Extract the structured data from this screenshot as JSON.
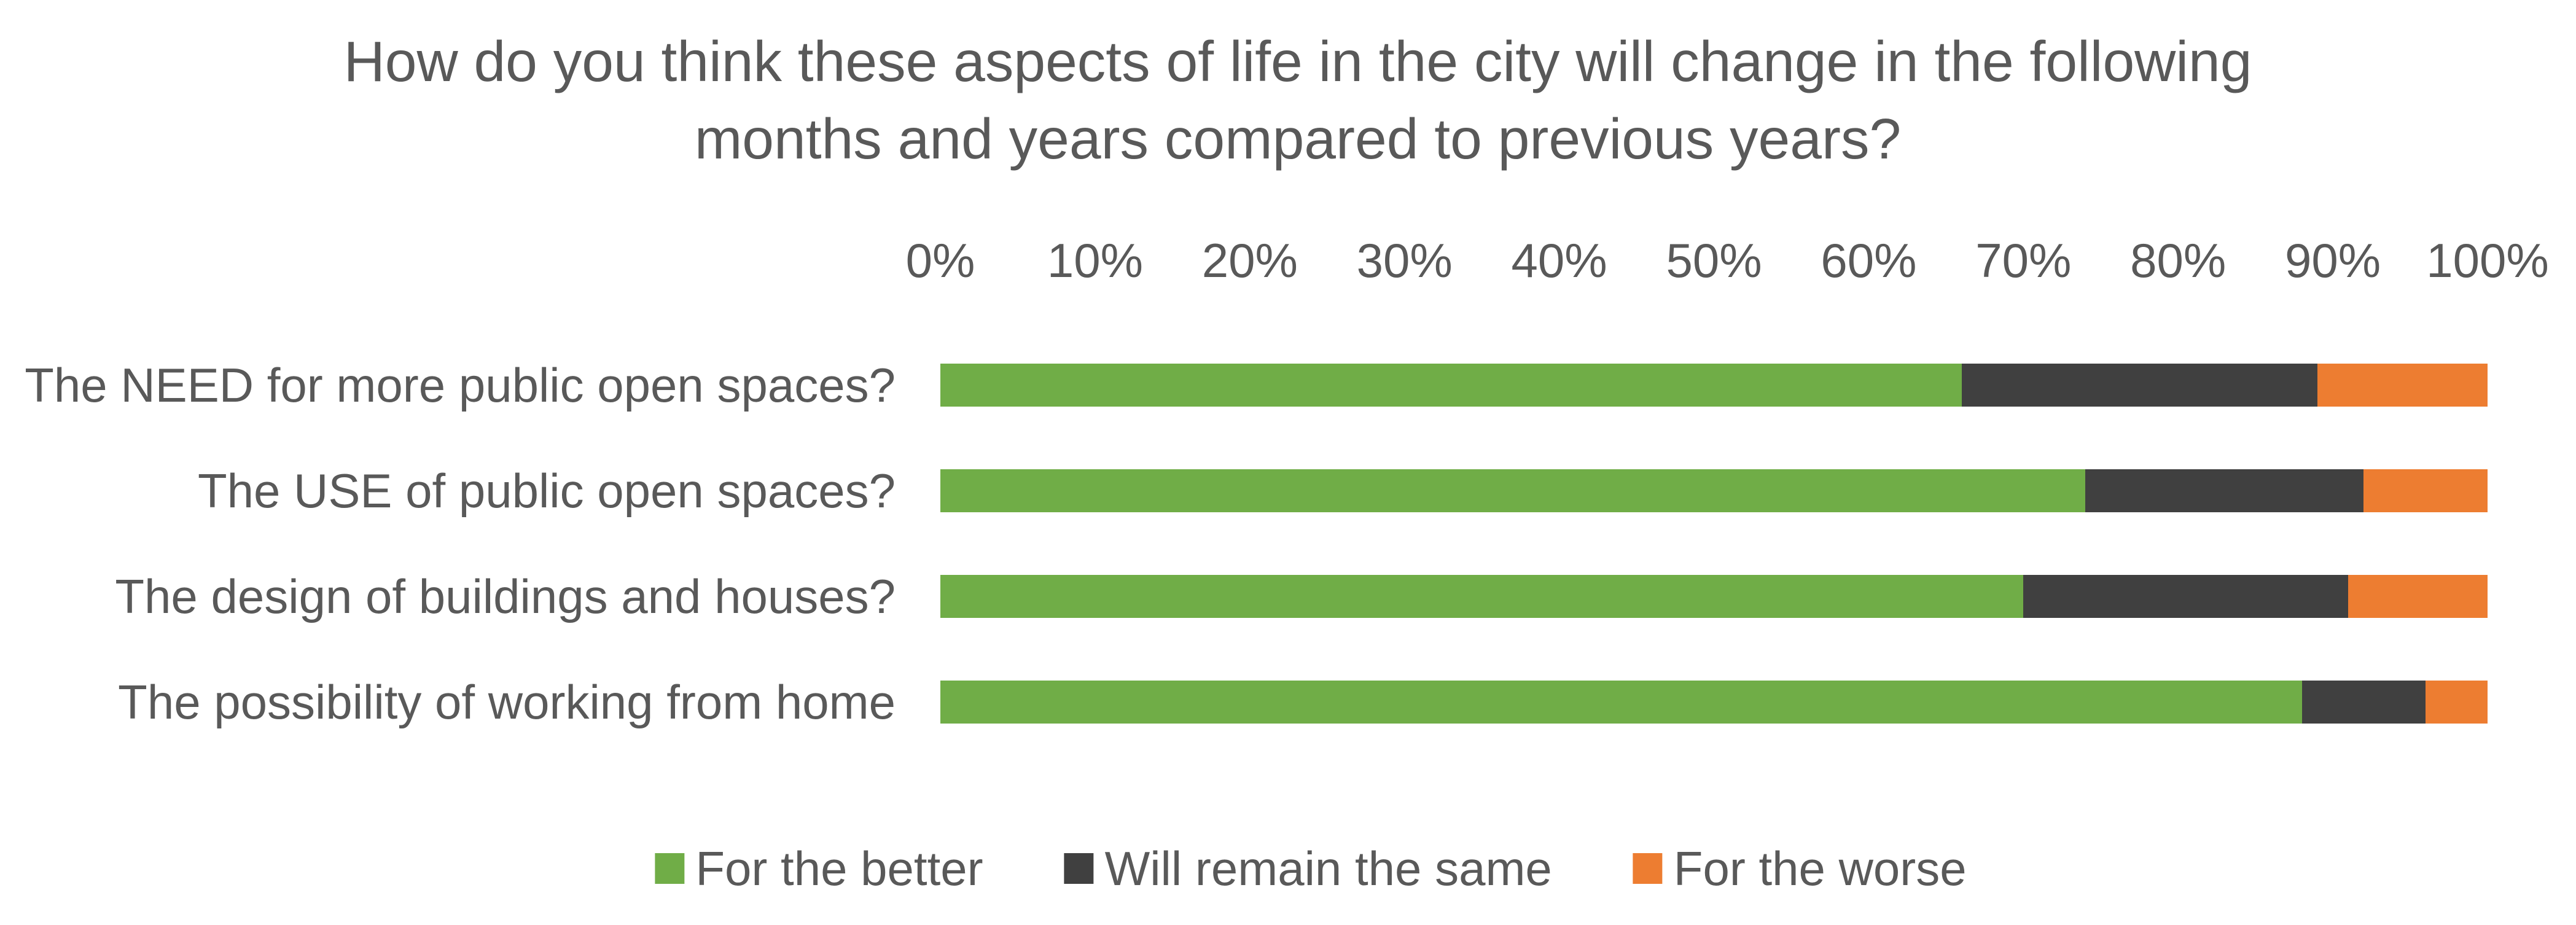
{
  "title": "How do you think these aspects of life in the city will change in the following months and years compared to previous years?",
  "colors": {
    "better": "#70AD47",
    "same": "#404040",
    "worse": "#ED7D31",
    "text": "#595959",
    "background": "#FFFFFF"
  },
  "chart_data": {
    "type": "bar",
    "orientation": "horizontal",
    "stacked": true,
    "title": "How do you think these aspects of life in the city will change in the following months and years compared to previous years?",
    "categories": [
      "The NEED for more public open spaces?",
      "The USE of public open spaces?",
      "The design of buildings and houses?",
      "The possibility of working from home"
    ],
    "series": [
      {
        "name": "For the better",
        "color_key": "better",
        "values": [
          66,
          74,
          70,
          88
        ]
      },
      {
        "name": "Will remain the same",
        "color_key": "same",
        "values": [
          23,
          18,
          21,
          8
        ]
      },
      {
        "name": "For the worse",
        "color_key": "worse",
        "values": [
          11,
          8,
          9,
          4
        ]
      }
    ],
    "value_unit": "%",
    "xlim": [
      0,
      100
    ],
    "x_ticks": [
      "0%",
      "10%",
      "20%",
      "30%",
      "40%",
      "50%",
      "60%",
      "70%",
      "80%",
      "90%",
      "100%"
    ],
    "grid": false,
    "legend_position": "bottom"
  }
}
